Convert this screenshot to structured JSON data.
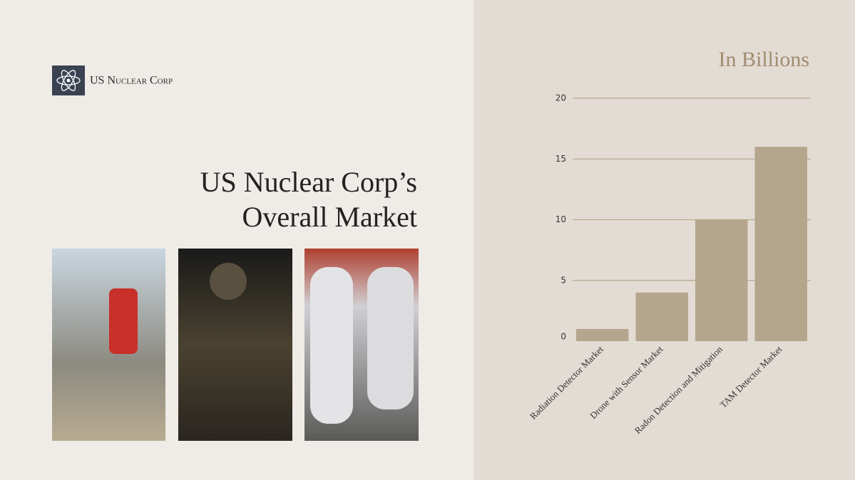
{
  "logo": "US Nuclear Corp",
  "heading": [
    "US Nuclear Corp’s",
    "Overall Market"
  ],
  "chart_data": {
    "type": "bar",
    "title": "In Billions",
    "categories": [
      "Radiation Detector Market",
      "Drone with Sensor Market",
      "Radon Detection and Mitigation",
      "TAM Detector Market"
    ],
    "values": [
      1,
      4,
      10,
      16
    ],
    "color": "#b5a58c",
    "ylim": [
      0,
      20
    ],
    "yticks": [
      0,
      5,
      10,
      15,
      20
    ],
    "grid": true
  }
}
